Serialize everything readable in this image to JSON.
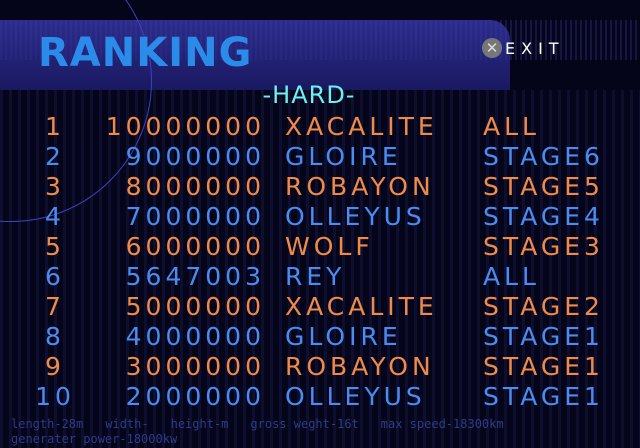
{
  "title": "RANKING",
  "exit": {
    "icon": "cross-button-icon",
    "label": "EXIT"
  },
  "difficulty": "-HARD-",
  "colors": {
    "odd": "#f08a48",
    "even": "#4a8cf0",
    "title": "#2a8ce8",
    "difficulty": "#6ef0f0"
  },
  "rows": [
    {
      "rank": "1",
      "score": "10000000",
      "name": "XACALITE",
      "stage": "ALL"
    },
    {
      "rank": "2",
      "score": "9000000",
      "name": "GLOIRE",
      "stage": "STAGE6"
    },
    {
      "rank": "3",
      "score": "8000000",
      "name": "ROBAYON",
      "stage": "STAGE5"
    },
    {
      "rank": "4",
      "score": "7000000",
      "name": "OLLEYUS",
      "stage": "STAGE4"
    },
    {
      "rank": "5",
      "score": "6000000",
      "name": "WOLF",
      "stage": "STAGE3"
    },
    {
      "rank": "6",
      "score": "5647003",
      "name": "REY",
      "stage": "ALL"
    },
    {
      "rank": "7",
      "score": "5000000",
      "name": "XACALITE",
      "stage": "STAGE2"
    },
    {
      "rank": "8",
      "score": "4000000",
      "name": "GLOIRE",
      "stage": "STAGE1"
    },
    {
      "rank": "9",
      "score": "3000000",
      "name": "ROBAYON",
      "stage": "STAGE1"
    },
    {
      "rank": "10",
      "score": "2000000",
      "name": "OLLEYUS",
      "stage": "STAGE1"
    }
  ],
  "specs": [
    "length-28m",
    "width-",
    "height-m",
    "gross weght-16t",
    "max speed-18300km",
    "generater power-18000kw"
  ]
}
